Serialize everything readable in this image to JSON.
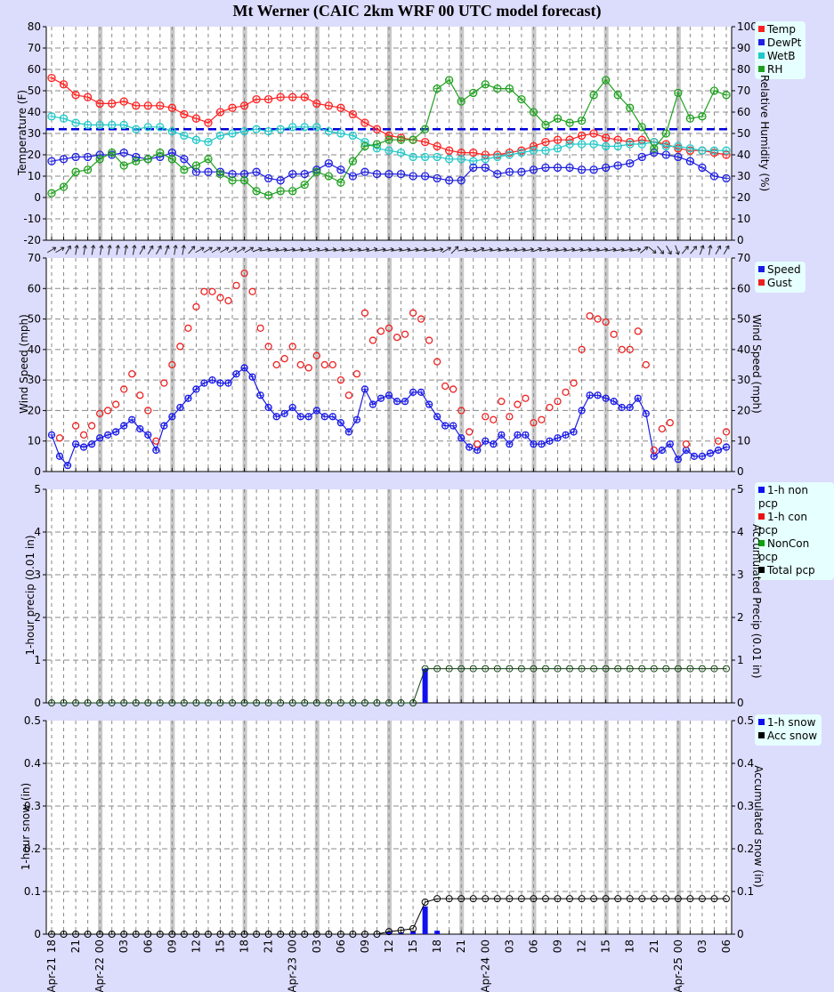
{
  "title": "Mt Werner (CAIC 2km WRF 00 UTC model forecast)",
  "colors": {
    "temp": "#ff2020",
    "dewpt": "#2020e0",
    "wetb": "#20c8c8",
    "rh": "#20a020",
    "speed": "#1a1ae6",
    "gust": "#ee2020",
    "freezing_line": "#0000dd",
    "background": "#dcdcfc",
    "legend_bg": "#e6ffff"
  },
  "x_axis": {
    "hour_labels": [
      "18",
      "21",
      "00",
      "03",
      "06",
      "09",
      "12",
      "15",
      "18",
      "21",
      "00",
      "03",
      "06",
      "09",
      "12",
      "15",
      "18",
      "21",
      "00",
      "03",
      "06",
      "09",
      "12",
      "15",
      "18",
      "21",
      "00",
      "03",
      "06"
    ],
    "date_labels": [
      {
        "label": "Apr-21",
        "at_index": 0
      },
      {
        "label": "Apr-22",
        "at_index": 6
      },
      {
        "label": "Apr-23",
        "at_index": 30
      },
      {
        "label": "Apr-24",
        "at_index": 54
      },
      {
        "label": "Apr-25",
        "at_index": 78
      }
    ],
    "note": "hourly points from Apr-21 18 to Apr-25 06 UTC (every 3h labeled); 57 plotted points at ~1.5h spacing"
  },
  "panels": {
    "temperature": {
      "ylabel_left": "Temperature (F)",
      "ylabel_right": "Relative Humidity (%)",
      "left_ticks": [
        "80",
        "70",
        "60",
        "50",
        "40",
        "30",
        "20",
        "10",
        "0",
        "-10",
        "-20"
      ],
      "right_ticks": [
        "100",
        "90",
        "80",
        "70",
        "60",
        "50",
        "40",
        "30",
        "20",
        "10",
        "0"
      ],
      "legend": [
        {
          "label": "Temp",
          "color": "#ff2020"
        },
        {
          "label": "DewPt",
          "color": "#2020e0"
        },
        {
          "label": "WetB",
          "color": "#20c8c8"
        },
        {
          "label": "RH",
          "color": "#20a020"
        }
      ]
    },
    "wind": {
      "ylabel_left": "Wind Speed (mph)",
      "ylabel_right": "Wind Speed (mph)",
      "ticks": [
        "70",
        "60",
        "50",
        "40",
        "30",
        "20",
        "10",
        "0"
      ],
      "legend": [
        {
          "label": "Speed",
          "color": "#1a1ae6"
        },
        {
          "label": "Gust",
          "color": "#ee2020"
        }
      ]
    },
    "precip": {
      "ylabel_left": "1-hour precip (0.01 in)",
      "ylabel_right": "Accumulated Precip (0.01 in)",
      "ticks": [
        "5",
        "4",
        "3",
        "2",
        "1",
        "0"
      ],
      "legend": [
        {
          "label": "1-h non pcp",
          "color": "#1010ee"
        },
        {
          "label": "1-h con pcp",
          "color": "#ee1010"
        },
        {
          "label": "NonCon pcp",
          "color": "#10a010"
        },
        {
          "label": "Total pcp",
          "color": "#000000"
        }
      ]
    },
    "snow": {
      "ylabel_left": "1-hour snow (in)",
      "ylabel_right": "Accumulated snow (in)",
      "ticks": [
        "0.5",
        "0.4",
        "0.3",
        "0.2",
        "0.1",
        "0"
      ],
      "legend": [
        {
          "label": "1-h snow",
          "color": "#1010ee"
        },
        {
          "label": "Acc snow",
          "color": "#000000"
        }
      ]
    }
  },
  "chart_data": [
    {
      "type": "line",
      "title": "Mt Werner (CAIC 2km WRF 00 UTC model forecast)",
      "xlabel": "",
      "ylabel": "Temperature (F)",
      "ylabel_right": "Relative Humidity (%)",
      "ylim": [
        -20,
        80
      ],
      "ylim_right": [
        0,
        100
      ],
      "grid": true,
      "legend_position": "right",
      "freezing_line_F": 32,
      "series": [
        {
          "name": "Temp",
          "axis": "left",
          "values": [
            56,
            53,
            48,
            47,
            44,
            44,
            45,
            43,
            43,
            43,
            42,
            39,
            37,
            35,
            40,
            42,
            43,
            46,
            46,
            47,
            47,
            47,
            44,
            43,
            42,
            39,
            35,
            32,
            29,
            28,
            27,
            26,
            24,
            22,
            21,
            21,
            20,
            20,
            21,
            22,
            24,
            26,
            27,
            27,
            29,
            30,
            28,
            27,
            26,
            27,
            26,
            25,
            23,
            22,
            22,
            21,
            20
          ]
        },
        {
          "name": "DewPt",
          "axis": "left",
          "values": [
            17,
            18,
            19,
            19,
            20,
            20,
            21,
            19,
            18,
            19,
            21,
            18,
            12,
            12,
            12,
            11,
            11,
            12,
            9,
            8,
            11,
            11,
            13,
            16,
            13,
            10,
            12,
            11,
            11,
            11,
            10,
            10,
            9,
            8,
            8,
            14,
            14,
            11,
            12,
            12,
            13,
            14,
            14,
            14,
            13,
            13,
            14,
            15,
            16,
            19,
            21,
            20,
            19,
            17,
            14,
            10,
            9
          ]
        },
        {
          "name": "WetB",
          "axis": "left",
          "values": [
            38,
            37,
            35,
            34,
            34,
            34,
            34,
            32,
            33,
            33,
            31,
            29,
            27,
            26,
            29,
            30,
            31,
            32,
            31,
            32,
            33,
            33,
            33,
            31,
            30,
            29,
            26,
            23,
            22,
            21,
            19,
            19,
            19,
            18,
            18,
            17,
            18,
            19,
            20,
            21,
            22,
            22,
            23,
            25,
            25,
            25,
            24,
            24,
            25,
            25,
            26,
            24,
            24,
            23,
            22,
            22,
            22
          ]
        },
        {
          "name": "RH",
          "axis": "right",
          "values": [
            22,
            25,
            32,
            33,
            38,
            41,
            35,
            37,
            38,
            41,
            38,
            33,
            35,
            38,
            31,
            28,
            28,
            23,
            21,
            23,
            23,
            26,
            32,
            30,
            27,
            37,
            44,
            45,
            47,
            47,
            47,
            52,
            71,
            75,
            65,
            69,
            73,
            71,
            71,
            66,
            60,
            54,
            57,
            55,
            56,
            68,
            75,
            68,
            62,
            53,
            43,
            50,
            69,
            57,
            58,
            70,
            68
          ]
        }
      ]
    },
    {
      "type": "line",
      "xlabel": "",
      "ylabel": "Wind Speed (mph)",
      "ylim": [
        0,
        70
      ],
      "grid": true,
      "legend_position": "right",
      "series": [
        {
          "name": "Speed",
          "values": [
            12,
            5,
            2,
            9,
            8,
            9,
            11,
            12,
            13,
            15,
            17,
            14,
            12,
            7,
            15,
            18,
            21,
            24,
            27,
            29,
            30,
            29,
            29,
            32,
            34,
            31,
            25,
            21,
            18,
            19,
            21,
            18,
            18,
            20,
            18,
            18,
            16,
            13,
            17,
            27,
            22,
            24,
            25,
            23,
            23,
            26,
            26,
            22,
            18,
            15,
            15,
            11,
            8,
            7,
            10,
            9,
            12,
            9,
            12,
            12,
            9,
            9,
            10,
            11,
            12,
            13,
            20,
            25,
            25,
            24,
            23,
            21,
            21,
            24,
            19,
            5,
            7,
            9,
            4,
            7,
            5,
            5,
            6,
            7,
            8
          ]
        },
        {
          "name": "Gust",
          "values": [
            null,
            11,
            null,
            15,
            12,
            15,
            19,
            20,
            22,
            27,
            32,
            25,
            20,
            10,
            29,
            35,
            41,
            47,
            54,
            59,
            59,
            57,
            56,
            61,
            65,
            59,
            47,
            41,
            35,
            37,
            41,
            35,
            34,
            38,
            35,
            35,
            30,
            25,
            32,
            52,
            43,
            46,
            47,
            44,
            45,
            52,
            50,
            43,
            36,
            28,
            27,
            20,
            13,
            9,
            18,
            17,
            23,
            18,
            22,
            24,
            16,
            17,
            21,
            23,
            26,
            29,
            40,
            51,
            50,
            49,
            45,
            40,
            40,
            46,
            35,
            7,
            14,
            16,
            null,
            9,
            null,
            null,
            null,
            10,
            13
          ]
        },
        {
          "name": "Wind direction arrows",
          "note": "row of direction arrows above panel; SW/S flow early, W/WSW mid-period, NW near Apr-25 00"
        }
      ]
    },
    {
      "type": "bar",
      "ylabel": "1-hour precip (0.01 in)",
      "ylabel_right": "Accumulated Precip (0.01 in)",
      "ylim": [
        0,
        5
      ],
      "grid": true,
      "series": [
        {
          "name": "1-h non pcp",
          "note": "single bar ~0.8 at Apr-23 17 UTC; zero elsewhere"
        },
        {
          "name": "1-h con pcp",
          "values": "all 0"
        },
        {
          "name": "NonCon pcp",
          "values": "all 0"
        },
        {
          "name": "Total pcp (accumulated)",
          "note": "0 until Apr-23 16 UTC, then 0.8 through end"
        }
      ]
    },
    {
      "type": "bar",
      "ylabel": "1-hour snow (in)",
      "ylabel_right": "Accumulated snow (in)",
      "ylim": [
        0,
        0.5
      ],
      "grid": true,
      "series": [
        {
          "name": "1-h snow",
          "note": "small bars ~0.005-0.01 around Apr-23 13-16 UTC, ~0.065 at Apr-23 17 UTC, ~0.008 at Apr-23 18 UTC"
        },
        {
          "name": "Acc snow",
          "note": "0 until Apr-23 13, rising to ~0.013 by Apr-23 16, ~0.075 at 17, ~0.083 flat thereafter"
        }
      ]
    }
  ]
}
